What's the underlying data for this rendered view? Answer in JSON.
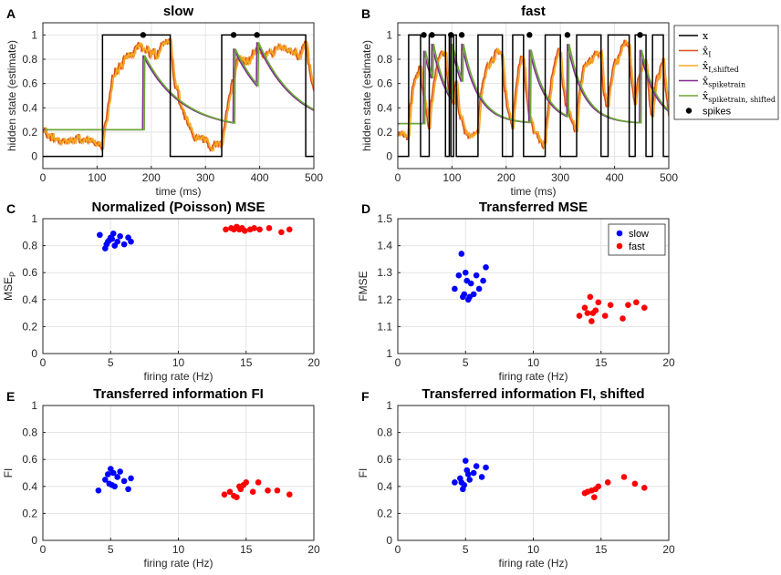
{
  "chart_data": [
    {
      "panel": "A",
      "type": "line",
      "title": "slow",
      "xlabel": "time (ms)",
      "ylabel": "hidden state (estimate)",
      "xlim": [
        0,
        500
      ],
      "ylim": [
        -0.1,
        1.1
      ],
      "xticks": [
        0,
        100,
        200,
        300,
        400,
        500
      ],
      "xtick_labels": [
        "0",
        "100",
        "200",
        "300",
        "400",
        "500"
      ],
      "yticks": [
        0,
        0.2,
        0.4,
        0.6,
        0.8,
        1
      ],
      "ytick_labels": [
        "0",
        "0.2",
        "0.4",
        "0.6",
        "0.8",
        "1"
      ],
      "switch_times": [
        0,
        110,
        235,
        330,
        485,
        500
      ],
      "state_start": 0,
      "spikes": [
        185,
        352,
        395
      ],
      "tau": 70,
      "base_trace": 0.22,
      "colors": {
        "x": "#000000",
        "xI": "#d95319",
        "xIs": "#f5a623",
        "xSpk": "#7e2f8e",
        "xSpks": "#6aa834",
        "spk": "#000000"
      }
    },
    {
      "panel": "B",
      "type": "line",
      "title": "fast",
      "xlabel": "time (ms)",
      "ylabel": "hidden state (estimate)",
      "xlim": [
        0,
        500
      ],
      "ylim": [
        -0.1,
        1.1
      ],
      "xticks": [
        0,
        100,
        200,
        300,
        400,
        500
      ],
      "xtick_labels": [
        "0",
        "100",
        "200",
        "300",
        "400",
        "500"
      ],
      "yticks": [
        0,
        0.2,
        0.4,
        0.6,
        0.8,
        1
      ],
      "ytick_labels": [
        "0",
        "0.2",
        "0.4",
        "0.6",
        "0.8",
        "1"
      ],
      "switch_times": [
        0,
        20,
        42,
        58,
        88,
        95,
        98,
        103,
        108,
        148,
        193,
        212,
        232,
        272,
        300,
        330,
        375,
        388,
        427,
        438,
        458,
        470,
        490,
        500
      ],
      "state_start": 0,
      "spikes": [
        48,
        63,
        98,
        118,
        243,
        313,
        447
      ],
      "tau": 30,
      "base_trace": 0.27,
      "legend": [
        {
          "key": "x",
          "label": "x",
          "sub": ""
        },
        {
          "key": "xI",
          "label": "x̂",
          "sub": "I"
        },
        {
          "key": "xIs",
          "label": "x̂",
          "sub": "I,shifted"
        },
        {
          "key": "xSpk",
          "label": "x̂",
          "sub": "spiketrain"
        },
        {
          "key": "xSpks",
          "label": "x̂",
          "sub": "spiketrain, shifted"
        },
        {
          "key": "spk",
          "label": "spikes",
          "sub": ""
        }
      ],
      "colors": {
        "x": "#000000",
        "xI": "#d95319",
        "xIs": "#f5a623",
        "xSpk": "#7e2f8e",
        "xSpks": "#6aa834",
        "spk": "#000000"
      }
    },
    {
      "panel": "C",
      "type": "scatter",
      "title": "Normalized (Poisson) MSE",
      "xlabel": "firing rate (Hz)",
      "ylabel": "MSE",
      "ylabel_sub": "P",
      "xlim": [
        0,
        20
      ],
      "ylim": [
        0,
        1
      ],
      "xticks": [
        0,
        5,
        10,
        15,
        20
      ],
      "xtick_labels": [
        "0",
        "5",
        "10",
        "15",
        "20"
      ],
      "yticks": [
        0,
        0.2,
        0.4,
        0.6,
        0.8,
        1
      ],
      "ytick_labels": [
        "0",
        "0.2",
        "0.4",
        "0.6",
        "0.8",
        "1"
      ],
      "series": [
        {
          "name": "slow",
          "color": "#0000ff",
          "x": [
            4.2,
            4.7,
            4.9,
            5.0,
            5.2,
            5.3,
            5.5,
            5.7,
            6.0,
            6.3,
            6.5,
            4.6,
            5.1,
            4.8
          ],
          "y": [
            0.88,
            0.81,
            0.84,
            0.86,
            0.89,
            0.8,
            0.83,
            0.87,
            0.81,
            0.86,
            0.83,
            0.78,
            0.85,
            0.83
          ]
        },
        {
          "name": "fast",
          "color": "#ff0000",
          "x": [
            13.5,
            13.9,
            14.1,
            14.3,
            14.5,
            14.7,
            14.9,
            15.3,
            15.6,
            16.0,
            16.7,
            17.6,
            18.2,
            14.4
          ],
          "y": [
            0.92,
            0.93,
            0.92,
            0.94,
            0.92,
            0.93,
            0.91,
            0.92,
            0.93,
            0.92,
            0.93,
            0.9,
            0.92,
            0.93
          ]
        }
      ]
    },
    {
      "panel": "D",
      "type": "scatter",
      "title": "Transferred MSE",
      "xlabel": "firing rate (Hz)",
      "ylabel": "FMSE",
      "ylabel_sub": "",
      "xlim": [
        0,
        20
      ],
      "ylim": [
        1,
        1.5
      ],
      "xticks": [
        0,
        5,
        10,
        15,
        20
      ],
      "xtick_labels": [
        "0",
        "5",
        "10",
        "15",
        "20"
      ],
      "yticks": [
        1,
        1.1,
        1.2,
        1.3,
        1.4,
        1.5
      ],
      "ytick_labels": [
        "1",
        "1.1",
        "1.2",
        "1.3",
        "1.4",
        "1.5"
      ],
      "legend": [
        "slow",
        "fast"
      ],
      "series": [
        {
          "name": "slow",
          "color": "#0000ff",
          "x": [
            4.2,
            4.5,
            4.7,
            4.8,
            5.0,
            5.1,
            5.2,
            5.4,
            5.6,
            5.8,
            6.0,
            6.3,
            6.5,
            4.9,
            5.3
          ],
          "y": [
            1.24,
            1.29,
            1.37,
            1.21,
            1.3,
            1.27,
            1.2,
            1.26,
            1.22,
            1.29,
            1.24,
            1.27,
            1.32,
            1.22,
            1.21
          ]
        },
        {
          "name": "fast",
          "color": "#ff0000",
          "x": [
            13.4,
            13.8,
            14.0,
            14.2,
            14.4,
            14.6,
            14.8,
            15.3,
            15.7,
            16.6,
            17.0,
            17.6,
            18.2,
            14.3
          ],
          "y": [
            1.14,
            1.17,
            1.15,
            1.21,
            1.15,
            1.16,
            1.19,
            1.14,
            1.18,
            1.13,
            1.18,
            1.19,
            1.17,
            1.12
          ]
        }
      ]
    },
    {
      "panel": "E",
      "type": "scatter",
      "title": "Transferred information FI",
      "xlabel": "firing rate (Hz)",
      "ylabel": "FI",
      "ylabel_sub": "",
      "xlim": [
        0,
        20
      ],
      "ylim": [
        0,
        1
      ],
      "xticks": [
        0,
        5,
        10,
        15,
        20
      ],
      "xtick_labels": [
        "0",
        "5",
        "10",
        "15",
        "20"
      ],
      "yticks": [
        0,
        0.2,
        0.4,
        0.6,
        0.8,
        1
      ],
      "ytick_labels": [
        "0",
        "0.2",
        "0.4",
        "0.6",
        "0.8",
        "1"
      ],
      "series": [
        {
          "name": "slow",
          "color": "#0000ff",
          "x": [
            4.1,
            4.6,
            4.8,
            5.0,
            5.1,
            5.3,
            5.5,
            5.7,
            6.0,
            6.3,
            6.5,
            4.9,
            5.2
          ],
          "y": [
            0.37,
            0.45,
            0.49,
            0.53,
            0.41,
            0.4,
            0.47,
            0.51,
            0.44,
            0.38,
            0.46,
            0.42,
            0.5
          ]
        },
        {
          "name": "fast",
          "color": "#ff0000",
          "x": [
            13.4,
            13.8,
            14.1,
            14.3,
            14.6,
            14.8,
            15.0,
            15.5,
            15.9,
            16.6,
            17.3,
            18.2,
            14.5
          ],
          "y": [
            0.34,
            0.36,
            0.33,
            0.32,
            0.38,
            0.41,
            0.43,
            0.36,
            0.43,
            0.37,
            0.37,
            0.34,
            0.4
          ]
        }
      ]
    },
    {
      "panel": "F",
      "type": "scatter",
      "title": "Transferred information FI, shifted",
      "xlabel": "firing rate (Hz)",
      "ylabel": "FI",
      "ylabel_sub": "",
      "xlim": [
        0,
        20
      ],
      "ylim": [
        0,
        1
      ],
      "xticks": [
        0,
        5,
        10,
        15,
        20
      ],
      "xtick_labels": [
        "0",
        "5",
        "10",
        "15",
        "20"
      ],
      "yticks": [
        0,
        0.2,
        0.4,
        0.6,
        0.8,
        1
      ],
      "ytick_labels": [
        "0",
        "0.2",
        "0.4",
        "0.6",
        "0.8",
        "1"
      ],
      "series": [
        {
          "name": "slow",
          "color": "#0000ff",
          "x": [
            4.2,
            4.6,
            4.8,
            4.9,
            5.0,
            5.1,
            5.3,
            5.6,
            5.8,
            6.2,
            6.5,
            4.7,
            5.2
          ],
          "y": [
            0.43,
            0.46,
            0.38,
            0.41,
            0.59,
            0.52,
            0.45,
            0.5,
            0.55,
            0.47,
            0.54,
            0.43,
            0.49
          ]
        },
        {
          "name": "fast",
          "color": "#ff0000",
          "x": [
            13.8,
            14.0,
            14.3,
            14.5,
            14.8,
            15.5,
            16.7,
            17.5,
            18.2,
            14.6
          ],
          "y": [
            0.35,
            0.36,
            0.37,
            0.32,
            0.4,
            0.43,
            0.47,
            0.42,
            0.39,
            0.38
          ]
        }
      ]
    }
  ]
}
